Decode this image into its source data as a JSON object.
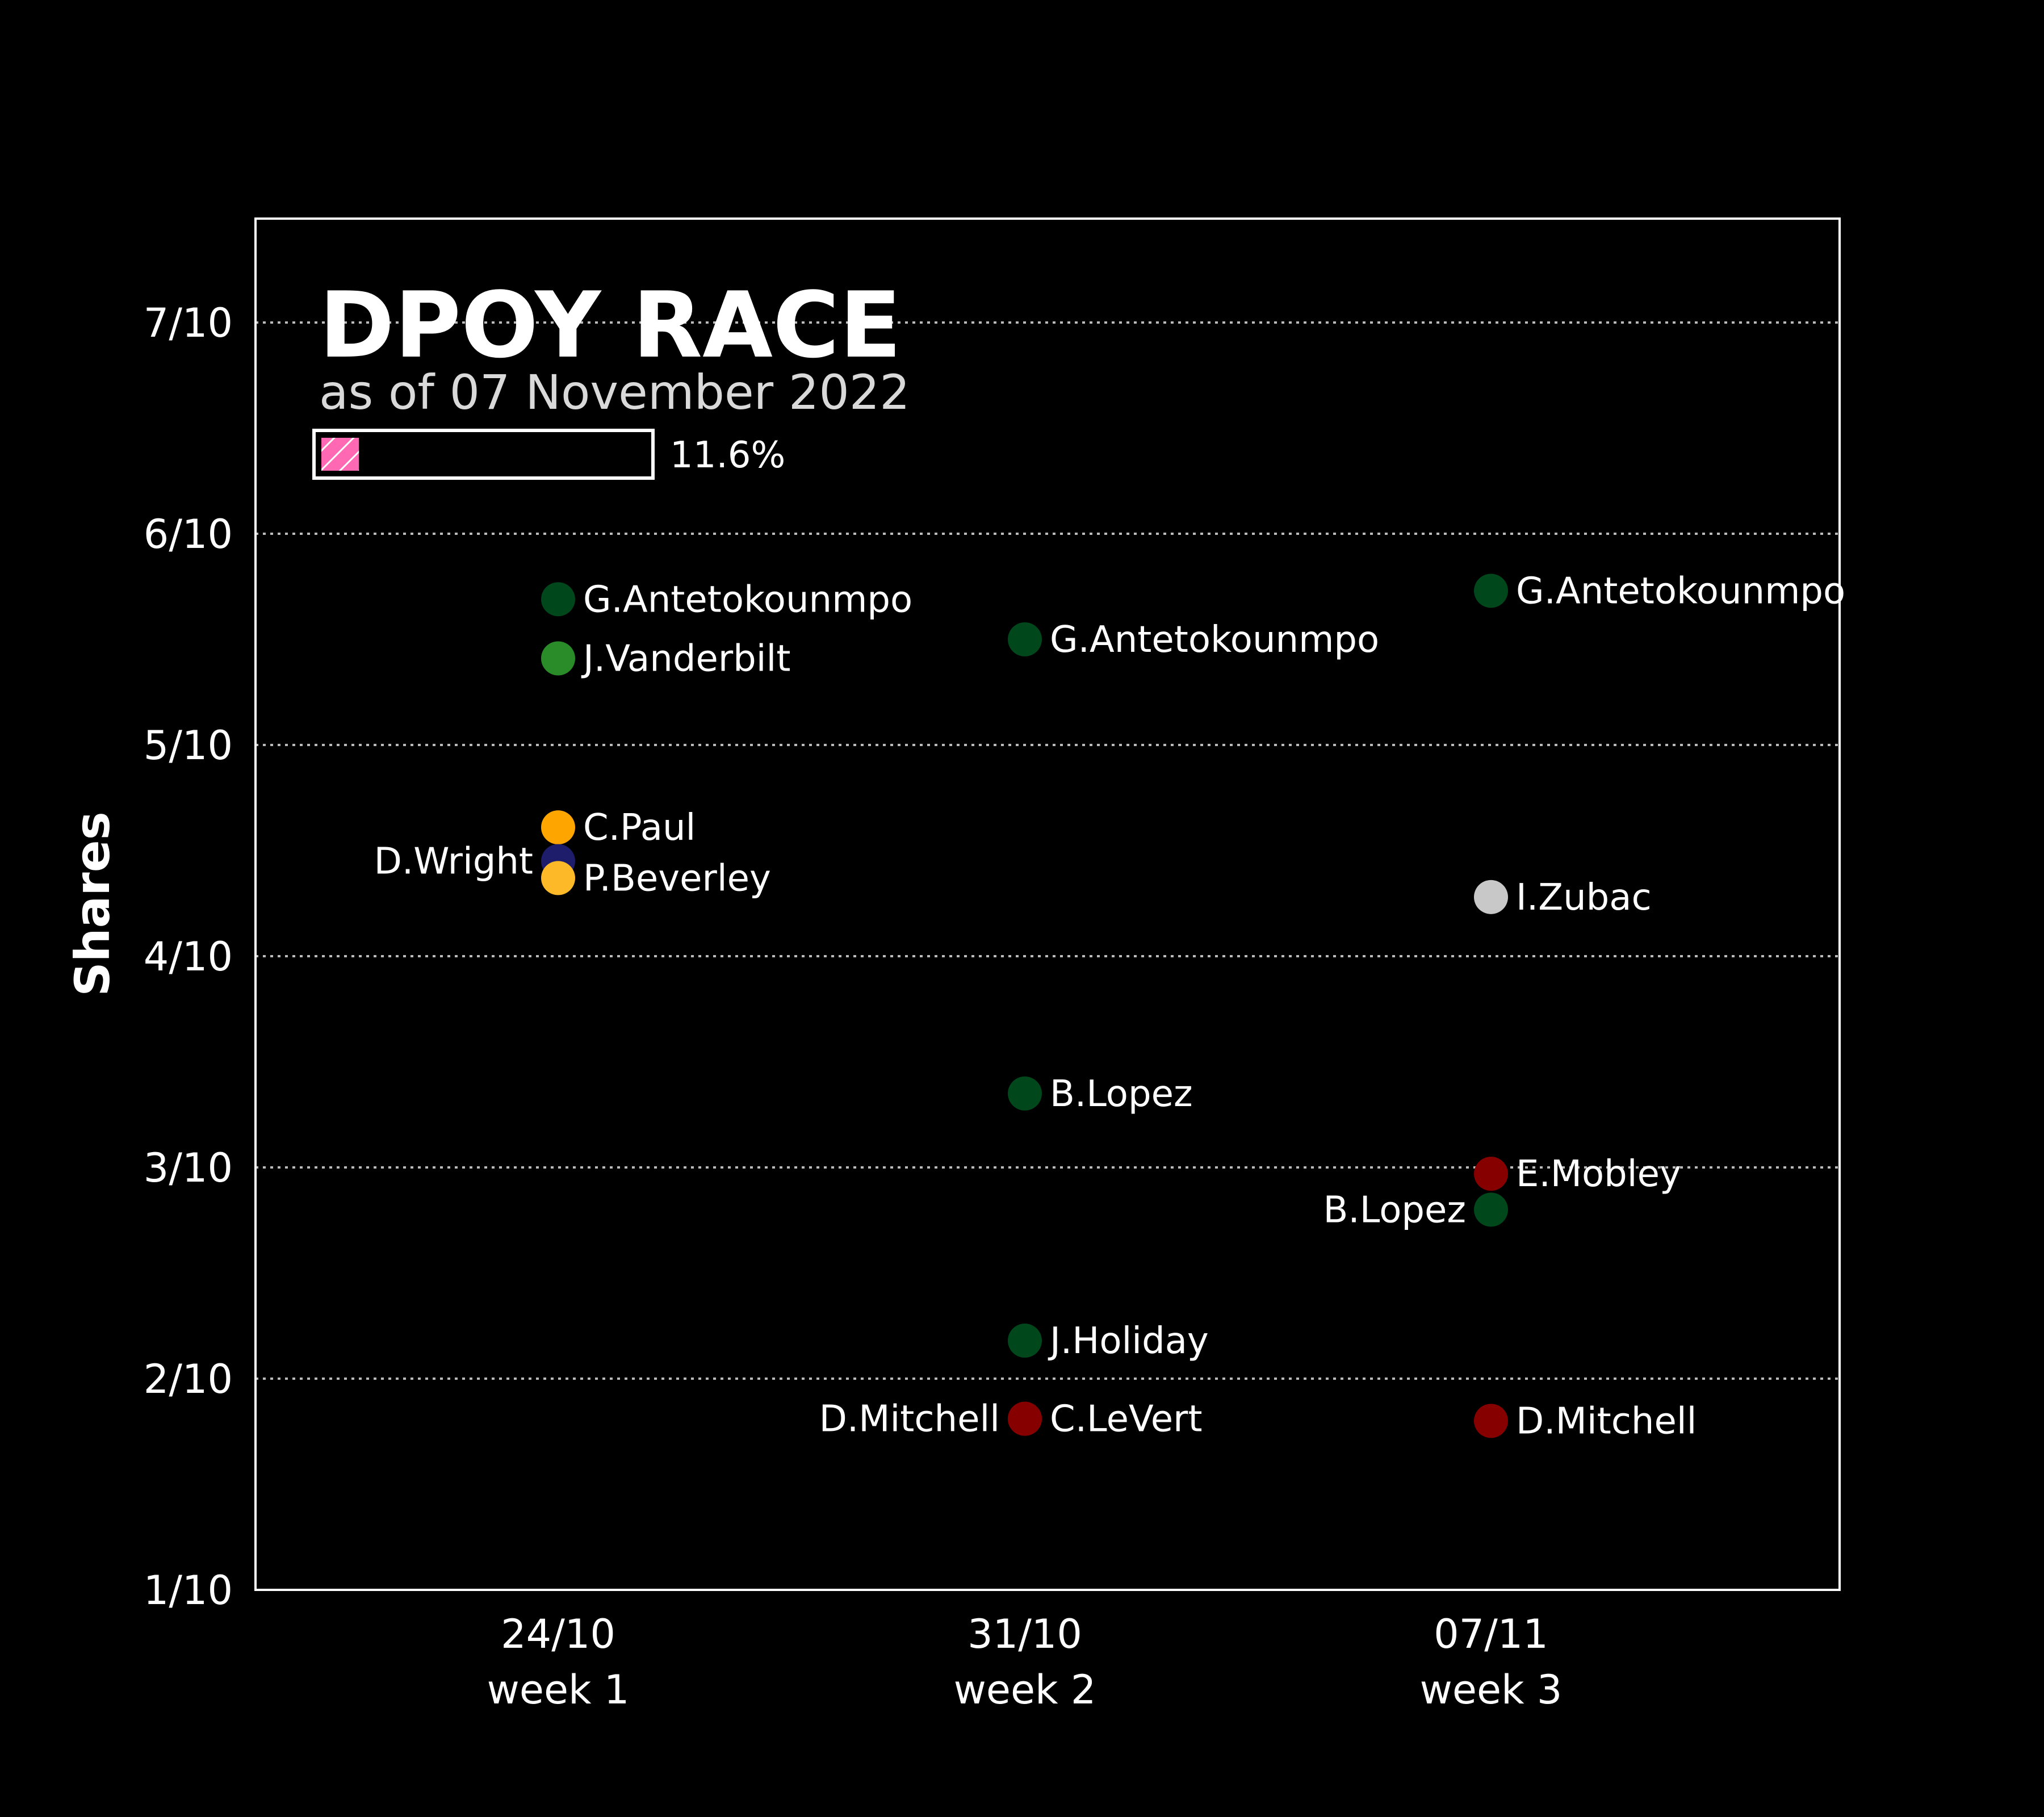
{
  "chart_data": {
    "type": "scatter",
    "title": "DPOY RACE",
    "subtitle": "as of 07 November 2022",
    "ylabel": "Shares",
    "xlabel": "",
    "grid": true,
    "y_ticks": [
      {
        "value": 0.1,
        "label": "1/10"
      },
      {
        "value": 0.2,
        "label": "2/10"
      },
      {
        "value": 0.3,
        "label": "3/10"
      },
      {
        "value": 0.4,
        "label": "4/10"
      },
      {
        "value": 0.5,
        "label": "5/10"
      },
      {
        "value": 0.6,
        "label": "6/10"
      },
      {
        "value": 0.7,
        "label": "7/10"
      }
    ],
    "ylim": [
      0.1,
      0.75
    ],
    "categories": [
      {
        "date": "24/10",
        "week": "week 1"
      },
      {
        "date": "31/10",
        "week": "week 2"
      },
      {
        "date": "07/11",
        "week": "week 3"
      }
    ],
    "progress": {
      "value": 0.116,
      "label": "11.6%",
      "color": "#ff69b4"
    },
    "points": [
      {
        "week": 0,
        "player": "G.Antetokounmpo",
        "y": 0.569,
        "color": "#00471b",
        "label_side": "right"
      },
      {
        "week": 0,
        "player": "J.Vanderbilt",
        "y": 0.541,
        "color": "#2a8c28",
        "label_side": "right"
      },
      {
        "week": 0,
        "player": "C.Paul",
        "y": 0.461,
        "color": "#ffa500",
        "label_side": "right"
      },
      {
        "week": 0,
        "player": "D.Wright",
        "y": 0.445,
        "color": "#1d1d6b",
        "label_side": "left"
      },
      {
        "week": 0,
        "player": "P.Beverley",
        "y": 0.437,
        "color": "#fdb927",
        "label_side": "right"
      },
      {
        "week": 1,
        "player": "G.Antetokounmpo",
        "y": 0.55,
        "color": "#00471b",
        "label_side": "right"
      },
      {
        "week": 1,
        "player": "B.Lopez",
        "y": 0.335,
        "color": "#00471b",
        "label_side": "right"
      },
      {
        "week": 1,
        "player": "J.Holiday",
        "y": 0.218,
        "color": "#00471b",
        "label_side": "right"
      },
      {
        "week": 1,
        "player": "D.Mitchell",
        "y": 0.181,
        "color": "#860000",
        "label_side": "left"
      },
      {
        "week": 1,
        "player": "C.LeVert",
        "y": 0.181,
        "color": "#860000",
        "label_side": "right"
      },
      {
        "week": 2,
        "player": "G.Antetokounmpo",
        "y": 0.573,
        "color": "#00471b",
        "label_side": "right"
      },
      {
        "week": 2,
        "player": "I.Zubac",
        "y": 0.428,
        "color": "#c8c8c8",
        "label_side": "right"
      },
      {
        "week": 2,
        "player": "E.Mobley",
        "y": 0.297,
        "color": "#860000",
        "label_side": "right"
      },
      {
        "week": 2,
        "player": "B.Lopez",
        "y": 0.28,
        "color": "#00471b",
        "label_side": "left"
      },
      {
        "week": 2,
        "player": "D.Mitchell",
        "y": 0.18,
        "color": "#860000",
        "label_side": "right"
      }
    ]
  }
}
